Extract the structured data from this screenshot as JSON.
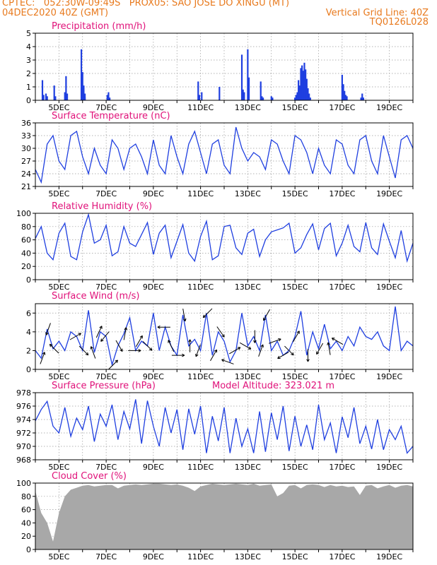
{
  "header": {
    "line1": "CPTEC:   052:30W-09:49S   PROX05: SAO JOSE DO XINGU (MT)",
    "line2_left": "04DEC2020 40Z (GMT)",
    "line2_right": "Vertical Grid Line: 40Z",
    "line3_right": "TQ0126L028"
  },
  "colors": {
    "header": "#e87a1e",
    "title": "#e0127a",
    "series": "#1f3fe0",
    "cloud": "#a8a8a8",
    "grid": "#9a9a9a"
  },
  "date_labels": [
    "5DEC",
    "7DEC",
    "9DEC",
    "11DEC",
    "13DEC",
    "15DEC",
    "17DEC",
    "19DEC"
  ],
  "chart_data": [
    {
      "id": "precip",
      "type": "bar",
      "title": "Precipitation (mm/h)",
      "ylim": [
        0,
        5
      ],
      "yticks": [
        "0",
        "1",
        "2",
        "3",
        "4",
        "5"
      ],
      "x_days": [
        0.3,
        0.35,
        0.45,
        0.5,
        0.8,
        0.85,
        1.25,
        1.3,
        1.35,
        1.95,
        2.0,
        2.05,
        2.1,
        2.1,
        3.05,
        3.1,
        3.15,
        6.9,
        6.95,
        7.05,
        7.8,
        8.75,
        8.8,
        8.85,
        9.0,
        9.05,
        9.55,
        9.6,
        9.65,
        10.0,
        10.05,
        11.0,
        11.05,
        11.1,
        11.15,
        11.2,
        11.25,
        11.3,
        11.35,
        11.4,
        11.45,
        11.5,
        11.55,
        11.6,
        11.65,
        13.0,
        13.05,
        13.1,
        13.15,
        13.2,
        13.8,
        13.85,
        13.9
      ],
      "values": [
        1.5,
        0.4,
        0.5,
        0.3,
        1.1,
        0.3,
        0.6,
        1.8,
        0.5,
        3.8,
        2.1,
        1.1,
        0.5,
        0.2,
        0.4,
        0.6,
        0.2,
        1.4,
        0.4,
        0.6,
        1.0,
        3.4,
        0.8,
        0.6,
        3.8,
        1.7,
        1.4,
        0.3,
        0.2,
        0.3,
        0.2,
        0.2,
        0.4,
        0.6,
        1.5,
        1.1,
        2.4,
        2.6,
        2.2,
        2.8,
        2.3,
        1.6,
        0.9,
        0.5,
        0.2,
        1.9,
        1.2,
        0.7,
        0.4,
        0.3,
        0.2,
        0.5,
        0.2
      ]
    },
    {
      "id": "temp",
      "type": "line",
      "title": "Surface Temperature (nC)",
      "ylim": [
        21,
        36
      ],
      "yticks": [
        "21",
        "24",
        "27",
        "30",
        "33",
        "36"
      ],
      "x_days": [
        0.0,
        0.25,
        0.5,
        0.75,
        1.0,
        1.25,
        1.5,
        1.75,
        2.0,
        2.25,
        2.5,
        2.75,
        3.0,
        3.25,
        3.5,
        3.75,
        4.0,
        4.25,
        4.5,
        4.75,
        5.0,
        5.25,
        5.5,
        5.75,
        6.0,
        6.25,
        6.5,
        6.75,
        7.0,
        7.25,
        7.5,
        7.75,
        8.0,
        8.25,
        8.5,
        8.75,
        9.0,
        9.25,
        9.5,
        9.75,
        10.0,
        10.25,
        10.5,
        10.75,
        11.0,
        11.25,
        11.5,
        11.75,
        12.0,
        12.25,
        12.5,
        12.75,
        13.0,
        13.25,
        13.5,
        13.75,
        14.0,
        14.25,
        14.5,
        14.75,
        15.0,
        15.25,
        15.5,
        15.75,
        16.0
      ],
      "values": [
        25,
        22,
        31,
        33,
        27,
        25,
        33,
        34,
        28,
        24,
        30,
        26,
        24,
        32,
        30,
        25,
        30,
        31,
        28,
        24,
        32,
        26,
        24,
        33,
        28,
        24,
        31,
        34,
        29,
        24,
        31,
        32,
        26,
        24,
        35,
        30,
        27,
        29,
        28,
        25,
        32,
        31,
        27,
        24,
        33,
        32,
        29,
        24,
        30,
        26,
        24,
        32,
        31,
        26,
        24,
        32,
        33,
        27,
        24,
        33,
        28,
        23,
        32,
        33,
        30
      ]
    },
    {
      "id": "rh",
      "type": "line",
      "title": "Relative Humidity (%)",
      "ylim": [
        0,
        100
      ],
      "yticks": [
        "0",
        "20",
        "40",
        "60",
        "80",
        "100"
      ],
      "x_days": [
        0.0,
        0.25,
        0.5,
        0.75,
        1.0,
        1.25,
        1.5,
        1.75,
        2.0,
        2.25,
        2.5,
        2.75,
        3.0,
        3.25,
        3.5,
        3.75,
        4.0,
        4.25,
        4.5,
        4.75,
        5.0,
        5.25,
        5.5,
        5.75,
        6.0,
        6.25,
        6.5,
        6.75,
        7.0,
        7.25,
        7.5,
        7.75,
        8.0,
        8.25,
        8.5,
        8.75,
        9.0,
        9.25,
        9.5,
        9.75,
        10.0,
        10.25,
        10.5,
        10.75,
        11.0,
        11.25,
        11.5,
        11.75,
        12.0,
        12.25,
        12.5,
        12.75,
        13.0,
        13.25,
        13.5,
        13.75,
        14.0,
        14.25,
        14.5,
        14.75,
        15.0,
        15.25,
        15.5,
        15.75,
        16.0
      ],
      "values": [
        62,
        80,
        40,
        30,
        70,
        85,
        35,
        30,
        72,
        98,
        55,
        60,
        82,
        36,
        42,
        80,
        55,
        50,
        68,
        86,
        38,
        70,
        82,
        33,
        58,
        83,
        40,
        28,
        65,
        88,
        30,
        36,
        80,
        82,
        48,
        38,
        70,
        76,
        35,
        60,
        72,
        75,
        78,
        85,
        40,
        48,
        68,
        84,
        45,
        77,
        85,
        36,
        55,
        82,
        50,
        42,
        86,
        48,
        38,
        84,
        58,
        33,
        74,
        28,
        55
      ]
    },
    {
      "id": "wind",
      "type": "line",
      "title": "Surface Wind (m/s)",
      "ylim": [
        0,
        7
      ],
      "yticks": [
        "0",
        "2",
        "4",
        "6"
      ],
      "x_days": [
        0.0,
        0.25,
        0.5,
        0.75,
        1.0,
        1.25,
        1.5,
        1.75,
        2.0,
        2.25,
        2.5,
        2.75,
        3.0,
        3.25,
        3.5,
        3.75,
        4.0,
        4.25,
        4.5,
        4.75,
        5.0,
        5.25,
        5.5,
        5.75,
        6.0,
        6.25,
        6.5,
        6.75,
        7.0,
        7.25,
        7.5,
        7.75,
        8.0,
        8.25,
        8.5,
        8.75,
        9.0,
        9.25,
        9.5,
        9.75,
        10.0,
        10.25,
        10.5,
        10.75,
        11.0,
        11.25,
        11.5,
        11.75,
        12.0,
        12.25,
        12.5,
        12.75,
        13.0,
        13.25,
        13.5,
        13.75,
        14.0,
        14.25,
        14.5,
        14.75,
        15.0,
        15.25,
        15.5,
        15.75,
        16.0
      ],
      "values": [
        2.0,
        1.2,
        4.3,
        2.2,
        3.0,
        2.0,
        4.0,
        3.5,
        2.0,
        6.3,
        1.8,
        4.0,
        3.5,
        0.5,
        2.5,
        3.8,
        5.5,
        2.0,
        3.0,
        2.5,
        6.0,
        2.0,
        4.5,
        2.5,
        1.5,
        5.8,
        2.5,
        3.2,
        2.0,
        6.0,
        1.5,
        4.0,
        3.0,
        0.8,
        2.0,
        6.0,
        2.5,
        3.5,
        2.0,
        5.8,
        2.0,
        3.0,
        1.5,
        2.0,
        3.5,
        6.2,
        1.5,
        4.0,
        2.2,
        4.8,
        2.2,
        3.0,
        2.0,
        3.5,
        2.5,
        4.5,
        3.5,
        3.2,
        4.0,
        2.5,
        2.0,
        6.7,
        2.0,
        3.0,
        2.5
      ],
      "arrows_days": [
        0.3,
        0.55,
        0.8,
        1.7,
        2.05,
        2.45,
        2.7,
        2.95,
        3.3,
        3.55,
        3.8,
        4.2,
        4.4,
        4.75,
        5.45,
        5.75,
        6.05,
        6.3,
        6.55,
        6.9,
        7.3,
        7.55,
        7.85,
        8.15,
        8.45,
        8.9,
        9.3,
        9.55,
        9.8,
        10.15,
        10.5,
        10.75,
        11.05,
        11.55,
        12.05,
        12.45,
        12.8
      ],
      "arrows_dir": [
        20,
        200,
        315,
        60,
        135,
        340,
        25,
        220,
        45,
        150,
        10,
        90,
        30,
        135,
        270,
        335,
        90,
        170,
        0,
        200,
        225,
        30,
        145,
        290,
        60,
        120,
        180,
        20,
        210,
        70,
        240,
        135,
        30,
        180,
        210,
        350,
        300
      ]
    },
    {
      "id": "press",
      "type": "line",
      "title": "Surface Pressure (hPa)",
      "annotation": "Model Altitude: 323.021 m",
      "ylim": [
        968,
        978
      ],
      "yticks": [
        "968",
        "970",
        "972",
        "974",
        "976",
        "978"
      ],
      "x_days": [
        0.0,
        0.25,
        0.5,
        0.75,
        1.0,
        1.25,
        1.5,
        1.75,
        2.0,
        2.25,
        2.5,
        2.75,
        3.0,
        3.25,
        3.5,
        3.75,
        4.0,
        4.25,
        4.5,
        4.75,
        5.0,
        5.25,
        5.5,
        5.75,
        6.0,
        6.25,
        6.5,
        6.75,
        7.0,
        7.25,
        7.5,
        7.75,
        8.0,
        8.25,
        8.5,
        8.75,
        9.0,
        9.25,
        9.5,
        9.75,
        10.0,
        10.25,
        10.5,
        10.75,
        11.0,
        11.25,
        11.5,
        11.75,
        12.0,
        12.25,
        12.5,
        12.75,
        13.0,
        13.25,
        13.5,
        13.75,
        14.0,
        14.25,
        14.5,
        14.75,
        15.0,
        15.25,
        15.5,
        15.75,
        16.0
      ],
      "values": [
        973.8,
        975.5,
        976.7,
        973.0,
        972.0,
        975.8,
        971.5,
        974.2,
        972.5,
        976.0,
        970.7,
        974.8,
        973.0,
        976.2,
        971.0,
        975.2,
        972.6,
        977.0,
        970.4,
        976.8,
        973.0,
        970.0,
        975.8,
        972.0,
        975.5,
        969.5,
        975.6,
        971.8,
        976.0,
        969.0,
        974.5,
        970.8,
        975.8,
        969.0,
        974.2,
        970.0,
        972.6,
        969.0,
        975.2,
        969.2,
        975.0,
        971.0,
        976.0,
        969.3,
        974.5,
        970.0,
        973.2,
        969.5,
        976.2,
        971.0,
        973.5,
        969.0,
        974.4,
        971.3,
        975.8,
        970.4,
        973.0,
        969.6,
        974.0,
        969.5,
        972.5,
        971.0,
        973.0,
        969.0,
        970.0
      ]
    },
    {
      "id": "cloud",
      "type": "area",
      "title": "Cloud Cover (%)",
      "ylim": [
        0,
        100
      ],
      "yticks": [
        "0",
        "20",
        "40",
        "60",
        "80",
        "100"
      ],
      "x_days": [
        0.0,
        0.25,
        0.5,
        0.75,
        1.0,
        1.25,
        1.5,
        1.75,
        2.0,
        2.25,
        2.5,
        2.75,
        3.0,
        3.25,
        3.5,
        3.75,
        4.0,
        4.25,
        4.5,
        4.75,
        5.0,
        5.25,
        5.5,
        5.75,
        6.0,
        6.25,
        6.5,
        6.75,
        7.0,
        7.25,
        7.5,
        7.75,
        8.0,
        8.25,
        8.5,
        8.75,
        9.0,
        9.25,
        9.5,
        9.75,
        10.0,
        10.25,
        10.5,
        10.75,
        11.0,
        11.25,
        11.5,
        11.75,
        12.0,
        12.25,
        12.5,
        12.75,
        13.0,
        13.25,
        13.5,
        13.75,
        14.0,
        14.25,
        14.5,
        14.75,
        15.0,
        15.25,
        15.5,
        15.75,
        16.0
      ],
      "values": [
        88,
        55,
        40,
        12,
        55,
        80,
        90,
        93,
        96,
        97,
        95,
        96,
        97,
        97,
        92,
        96,
        97,
        98,
        97,
        98,
        99,
        99,
        98,
        97,
        98,
        96,
        93,
        88,
        95,
        97,
        99,
        98,
        97,
        98,
        99,
        98,
        97,
        99,
        96,
        97,
        98,
        80,
        85,
        96,
        97,
        92,
        97,
        98,
        97,
        94,
        97,
        95,
        96,
        94,
        95,
        82,
        96,
        97,
        92,
        95,
        97,
        93,
        96,
        97,
        95
      ]
    }
  ]
}
